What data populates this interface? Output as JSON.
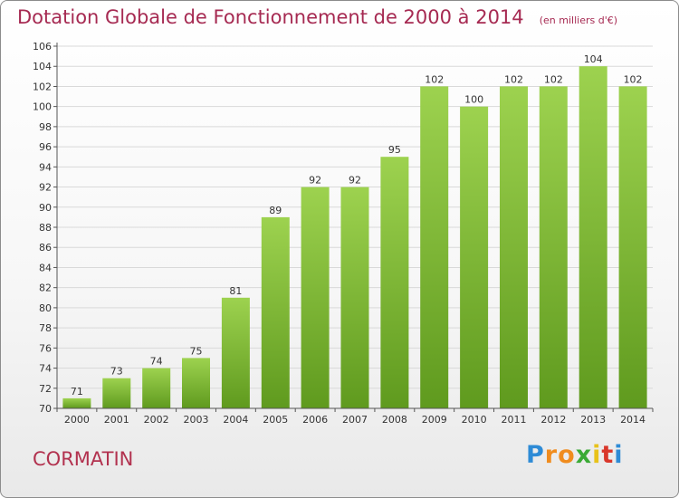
{
  "header": {
    "title": "Dotation Globale de Fonctionnement de 2000 à 2014",
    "subtitle": "(en milliers d'€)"
  },
  "footer": {
    "commune": "CORMATIN",
    "logo_letters": [
      "P",
      "r",
      "o",
      "x",
      "i",
      "t",
      "i"
    ],
    "logo_colors": [
      "#2e8bd6",
      "#f08c1e",
      "#f08c1e",
      "#3aaa35",
      "#e8c21a",
      "#d9372b",
      "#2e8bd6"
    ]
  },
  "colors": {
    "bar_top": "#9dd24f",
    "bar_bottom": "#5f9a1e",
    "axis": "#555555",
    "grid": "#d9d9d9"
  },
  "chart_data": {
    "type": "bar",
    "title": "Dotation Globale de Fonctionnement de 2000 à 2014",
    "xlabel": "",
    "ylabel": "",
    "categories": [
      "2000",
      "2001",
      "2002",
      "2003",
      "2004",
      "2005",
      "2006",
      "2007",
      "2008",
      "2009",
      "2010",
      "2011",
      "2012",
      "2013",
      "2014"
    ],
    "values": [
      71,
      73,
      74,
      75,
      81,
      89,
      92,
      92,
      95,
      102,
      100,
      102,
      102,
      104,
      102
    ],
    "ylim": [
      70,
      106
    ],
    "yticks": [
      70,
      72,
      74,
      76,
      78,
      80,
      82,
      84,
      86,
      88,
      90,
      92,
      94,
      96,
      98,
      100,
      102,
      104,
      106
    ],
    "grid": true,
    "legend": "none"
  }
}
